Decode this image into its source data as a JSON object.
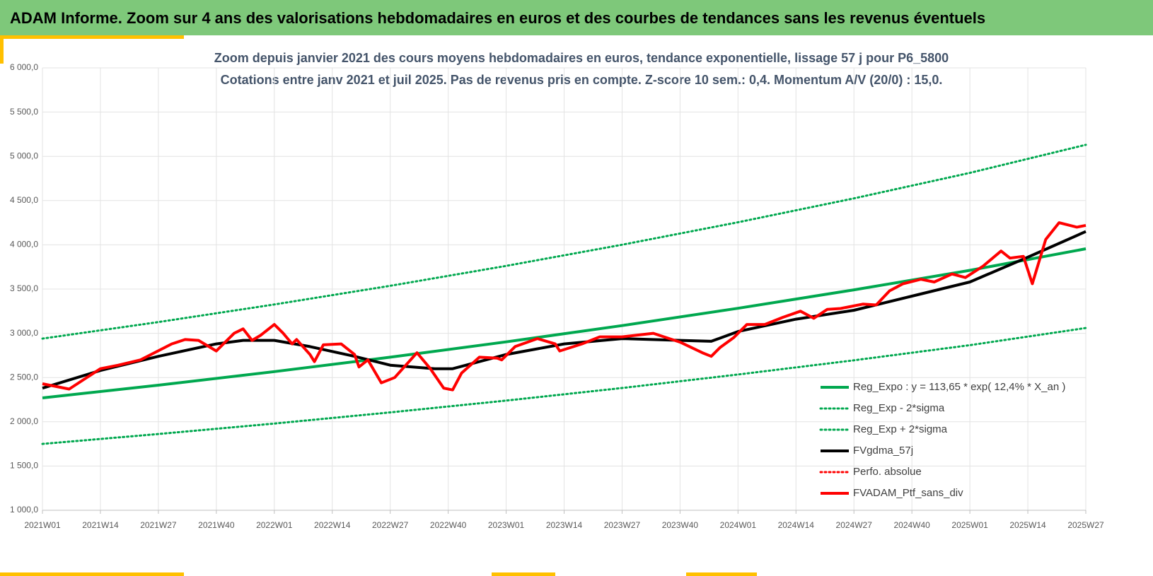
{
  "banner": "ADAM Informe. Zoom sur 4 ans des valorisations hebdomadaires en euros et des courbes de tendances sans les revenus éventuels",
  "chart_data": {
    "type": "line",
    "title": "Zoom depuis janvier 2021 des cours moyens hebdomadaires  en euros, tendance exponentielle, lissage 57 j pour P6_5800",
    "subtitle": "Cotations entre janv 2021 et juil 2025. Pas de revenus pris en compte. Z-score 10 sem.: 0,4. Momentum A/V (20/0) : 15,0.",
    "xlim": [
      0,
      234
    ],
    "xticks": [
      {
        "value": 0,
        "label": "2021W01"
      },
      {
        "value": 13,
        "label": "2021W14"
      },
      {
        "value": 26,
        "label": "2021W27"
      },
      {
        "value": 39,
        "label": "2021W40"
      },
      {
        "value": 52,
        "label": "2022W01"
      },
      {
        "value": 65,
        "label": "2022W14"
      },
      {
        "value": 78,
        "label": "2022W27"
      },
      {
        "value": 91,
        "label": "2022W40"
      },
      {
        "value": 104,
        "label": "2023W01"
      },
      {
        "value": 117,
        "label": "2023W14"
      },
      {
        "value": 130,
        "label": "2023W27"
      },
      {
        "value": 143,
        "label": "2023W40"
      },
      {
        "value": 156,
        "label": "2024W01"
      },
      {
        "value": 169,
        "label": "2024W14"
      },
      {
        "value": 182,
        "label": "2024W27"
      },
      {
        "value": 195,
        "label": "2024W40"
      },
      {
        "value": 208,
        "label": "2025W01"
      },
      {
        "value": 221,
        "label": "2025W14"
      },
      {
        "value": 234,
        "label": "2025W27"
      }
    ],
    "ylim": [
      1000,
      6000
    ],
    "yticks": [
      {
        "value": 1000,
        "label": "1 000,0"
      },
      {
        "value": 1500,
        "label": "1 500,0"
      },
      {
        "value": 2000,
        "label": "2 000,0"
      },
      {
        "value": 2500,
        "label": "2 500,0"
      },
      {
        "value": 3000,
        "label": "3 000,0"
      },
      {
        "value": 3500,
        "label": "3 500,0"
      },
      {
        "value": 4000,
        "label": "4 000,0"
      },
      {
        "value": 4500,
        "label": "4 500,0"
      },
      {
        "value": 5000,
        "label": "5 000,0"
      },
      {
        "value": 5500,
        "label": "5 500,0"
      },
      {
        "value": 6000,
        "label": "6 000,0"
      }
    ],
    "grid": true,
    "legend": "bottom-right",
    "series": [
      {
        "name": "Reg_Expo : y = 113,65 * exp( 12,4% *  X_an )",
        "color": "#00a84f",
        "dash": false,
        "x": [
          0,
          26,
          52,
          78,
          104,
          130,
          156,
          182,
          208,
          234
        ],
        "values": [
          2270,
          2414,
          2567,
          2730,
          2903,
          3087,
          3283,
          3491,
          3712,
          3955
        ]
      },
      {
        "name": "Reg_Exp - 2*sigma",
        "color": "#00a84f",
        "dash": true,
        "x": [
          0,
          26,
          52,
          78,
          104,
          130,
          156,
          182,
          208,
          234
        ],
        "values": [
          1750,
          1862,
          1980,
          2106,
          2240,
          2382,
          2534,
          2695,
          2866,
          3060
        ]
      },
      {
        "name": "Reg_Exp + 2*sigma",
        "color": "#00a84f",
        "dash": true,
        "x": [
          0,
          26,
          52,
          78,
          104,
          130,
          156,
          182,
          208,
          234
        ],
        "values": [
          2940,
          3127,
          3326,
          3537,
          3762,
          4001,
          4255,
          4525,
          4813,
          5130
        ]
      },
      {
        "name": "FVgdma_57j",
        "color": "#000000",
        "dash": false,
        "x": [
          0,
          13,
          26,
          39,
          45,
          52,
          60,
          70,
          78,
          88,
          92,
          104,
          117,
          130,
          143,
          150,
          156,
          169,
          182,
          195,
          208,
          221,
          234
        ],
        "values": [
          2380,
          2580,
          2740,
          2880,
          2920,
          2920,
          2850,
          2740,
          2640,
          2600,
          2600,
          2760,
          2880,
          2940,
          2920,
          2910,
          3020,
          3160,
          3260,
          3420,
          3580,
          3860,
          4150
        ]
      },
      {
        "name": "Perfo. absolue",
        "color": "#ff0000",
        "dash": true,
        "x": [],
        "values": []
      },
      {
        "name": "FVADAM_Ptf_sans_div",
        "color": "#ff0000",
        "dash": false,
        "x": [
          0,
          6,
          13,
          17,
          22,
          29,
          32,
          35,
          39,
          43,
          45,
          47,
          49,
          52,
          54,
          56,
          57,
          60,
          61,
          63,
          67,
          70,
          71,
          73,
          76,
          79,
          84,
          87,
          90,
          92,
          94,
          98,
          102,
          103,
          106,
          111,
          115,
          116,
          121,
          125,
          130,
          137,
          143,
          148,
          150,
          152,
          155,
          158,
          162,
          166,
          170,
          173,
          176,
          179,
          184,
          187,
          190,
          193,
          197,
          200,
          204,
          207,
          211,
          215,
          217,
          220,
          222,
          225,
          228,
          232,
          234
        ],
        "values": [
          2430,
          2370,
          2600,
          2640,
          2700,
          2880,
          2930,
          2920,
          2800,
          3000,
          3050,
          2920,
          2980,
          3100,
          3000,
          2880,
          2930,
          2760,
          2680,
          2870,
          2880,
          2760,
          2620,
          2700,
          2440,
          2500,
          2780,
          2600,
          2380,
          2360,
          2550,
          2730,
          2720,
          2700,
          2850,
          2940,
          2880,
          2800,
          2880,
          2960,
          2960,
          3000,
          2900,
          2780,
          2740,
          2840,
          2950,
          3100,
          3100,
          3180,
          3250,
          3170,
          3270,
          3280,
          3330,
          3320,
          3480,
          3560,
          3610,
          3580,
          3670,
          3630,
          3760,
          3930,
          3850,
          3870,
          3560,
          4060,
          4250,
          4200,
          4220
        ]
      }
    ]
  }
}
